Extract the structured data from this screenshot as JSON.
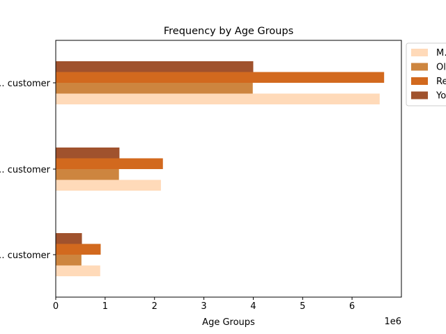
{
  "chart_data": {
    "type": "bar",
    "orientation": "horizontal",
    "title": "Frequency by Age Groups",
    "xlabel": "Age Groups",
    "ylabel": "",
    "x_scale_label": "1e6",
    "xlim": [
      0,
      7000000
    ],
    "x_ticks": [
      0,
      1000000,
      2000000,
      3000000,
      4000000,
      5000000,
      6000000
    ],
    "x_tick_labels": [
      "0",
      "1",
      "2",
      "3",
      "4",
      "5",
      "6"
    ],
    "categories": [
      "… customer",
      "… customer",
      "… customer"
    ],
    "series": [
      {
        "name": "M…",
        "color": "#ffdab9",
        "values": [
          900000,
          2130000,
          6560000
        ]
      },
      {
        "name": "Ol…",
        "color": "#cd853f",
        "values": [
          520000,
          1280000,
          3990000
        ]
      },
      {
        "name": "Re…",
        "color": "#d2691e",
        "values": [
          910000,
          2170000,
          6650000
        ]
      },
      {
        "name": "Yo…",
        "color": "#a0522d",
        "values": [
          530000,
          1290000,
          4000000
        ]
      }
    ],
    "legend_position": "outside-top-right",
    "grid": false
  }
}
